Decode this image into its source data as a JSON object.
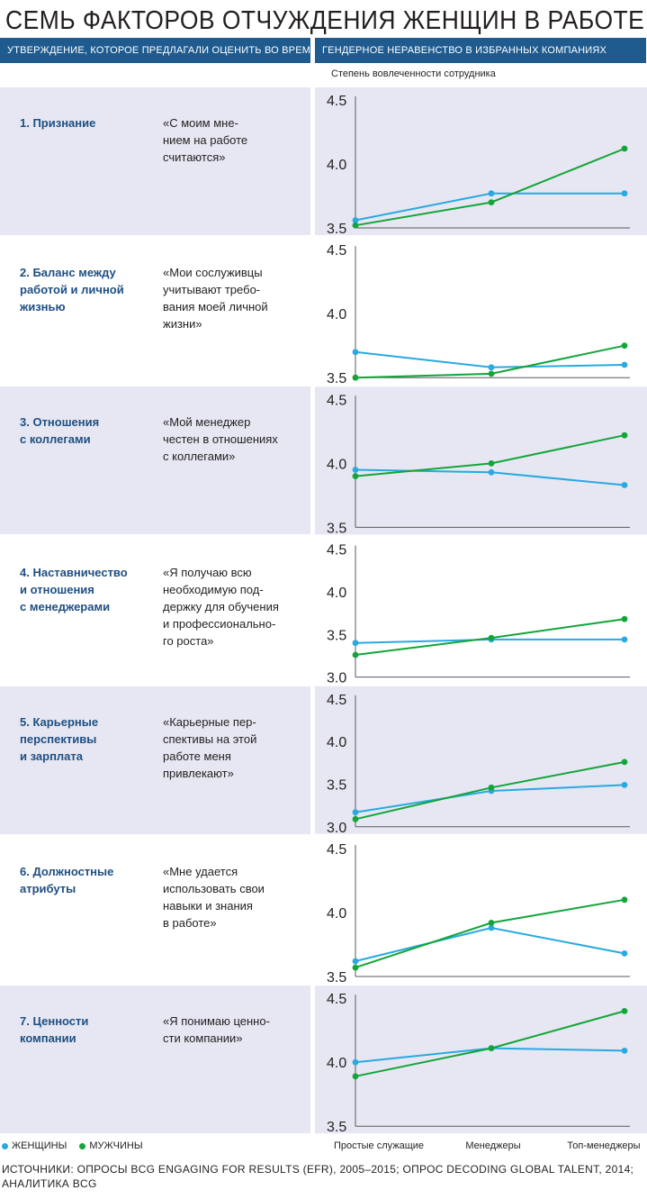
{
  "title": "СЕМЬ ФАКТОРОВ ОТЧУЖДЕНИЯ ЖЕНЩИН В РАБОТЕ",
  "header_left": "УТВЕРЖДЕНИЕ, КОТОРОЕ ПРЕДЛАГАЛИ ОЦЕНИТЬ ВО ВРЕМЯ ОПРОСА",
  "header_right": "ГЕНДЕРНОЕ НЕРАВЕНСТВО В ИЗБРАННЫХ КОМПАНИЯХ",
  "ylabel": "Степень вовлеченности сотрудника",
  "legend": {
    "women": "ЖЕНЩИНЫ",
    "men": "МУЖЧИНЫ"
  },
  "colors": {
    "women": "#29a9e1",
    "men": "#13a538",
    "header": "#1f5b8f",
    "panel": "#e6e7f2"
  },
  "source": "ИСТОЧНИКИ: ОПРОСЫ BCG ENGAGING FOR RESULTS (EFR), 2005–2015; ОПРОС DECODING GLOBAL TALENT, 2014; АНАЛИТИКА BCG",
  "chart_data": {
    "type": "line",
    "categories": [
      "Простые служащие",
      "Менеджеры",
      "Топ-менеджеры"
    ],
    "panels": [
      {
        "factor": "1. Признание",
        "statement": "«С моим мне-\nнием на работе\nсчитаются»",
        "ylim": [
          3.5,
          4.5
        ],
        "yticks": [
          "4.5",
          "4.0",
          "3.5"
        ],
        "series": [
          {
            "name": "ЖЕНЩИНЫ",
            "values": [
              3.56,
              3.77,
              3.77
            ]
          },
          {
            "name": "МУЖЧИНЫ",
            "values": [
              3.52,
              3.7,
              4.12
            ]
          }
        ]
      },
      {
        "factor": "2. Баланс между\nработой и личной\nжизнью",
        "statement": "«Мои сослуживцы\nучитывают требо-\nвания моей личной\nжизни»",
        "ylim": [
          3.5,
          4.5
        ],
        "yticks": [
          "4.5",
          "4.0",
          "3.5"
        ],
        "series": [
          {
            "name": "ЖЕНЩИНЫ",
            "values": [
              3.7,
              3.58,
              3.6
            ]
          },
          {
            "name": "МУЖЧИНЫ",
            "values": [
              3.5,
              3.53,
              3.75
            ]
          }
        ]
      },
      {
        "factor": "3. Отношения\nс коллегами",
        "statement": "«Мой менеджер\nчестен в отношениях\nс коллегами»",
        "ylim": [
          3.5,
          4.5
        ],
        "yticks": [
          "4.5",
          "4.0",
          "3.5"
        ],
        "series": [
          {
            "name": "ЖЕНЩИНЫ",
            "values": [
              3.95,
              3.93,
              3.83
            ]
          },
          {
            "name": "МУЖЧИНЫ",
            "values": [
              3.9,
              4.0,
              4.22
            ]
          }
        ]
      },
      {
        "factor": "4. Наставничество\nи отношения\nс менеджерами",
        "statement": "«Я получаю всю\nнеобходимую под-\nдержку для обучения\nи профессионально-\nго роста»",
        "ylim": [
          3.0,
          4.5
        ],
        "yticks": [
          "4.5",
          "4.0",
          "3.5",
          "3.0"
        ],
        "series": [
          {
            "name": "ЖЕНЩИНЫ",
            "values": [
              3.4,
              3.44,
              3.44
            ]
          },
          {
            "name": "МУЖЧИНЫ",
            "values": [
              3.26,
              3.46,
              3.68
            ]
          }
        ]
      },
      {
        "factor": "5. Карьерные\nперспективы\nи зарплата",
        "statement": "«Карьерные пер-\nспективы на этой\nработе меня\nпривлекают»",
        "ylim": [
          3.0,
          4.5
        ],
        "yticks": [
          "4.5",
          "4.0",
          "3.5",
          "3.0"
        ],
        "series": [
          {
            "name": "ЖЕНЩИНЫ",
            "values": [
              3.17,
              3.42,
              3.49
            ]
          },
          {
            "name": "МУЖЧИНЫ",
            "values": [
              3.09,
              3.46,
              3.76
            ]
          }
        ]
      },
      {
        "factor": "6. Должностные\nатрибуты",
        "statement": "«Мне удается\nиспользовать свои\nнавыки и знания\nв работе»",
        "ylim": [
          3.5,
          4.5
        ],
        "yticks": [
          "4.5",
          "4.0",
          "3.5"
        ],
        "series": [
          {
            "name": "ЖЕНЩИНЫ",
            "values": [
              3.62,
              3.88,
              3.68
            ]
          },
          {
            "name": "МУЖЧИНЫ",
            "values": [
              3.57,
              3.92,
              4.1
            ]
          }
        ]
      },
      {
        "factor": "7. Ценности компании",
        "statement": "«Я понимаю ценно-\nсти компании»",
        "ylim": [
          3.5,
          4.5
        ],
        "yticks": [
          "4.5",
          "4.0",
          "3.5"
        ],
        "series": [
          {
            "name": "ЖЕНЩИНЫ",
            "values": [
              4.0,
              4.11,
              4.09
            ]
          },
          {
            "name": "МУЖЧИНЫ",
            "values": [
              3.89,
              4.11,
              4.4
            ]
          }
        ]
      }
    ]
  }
}
